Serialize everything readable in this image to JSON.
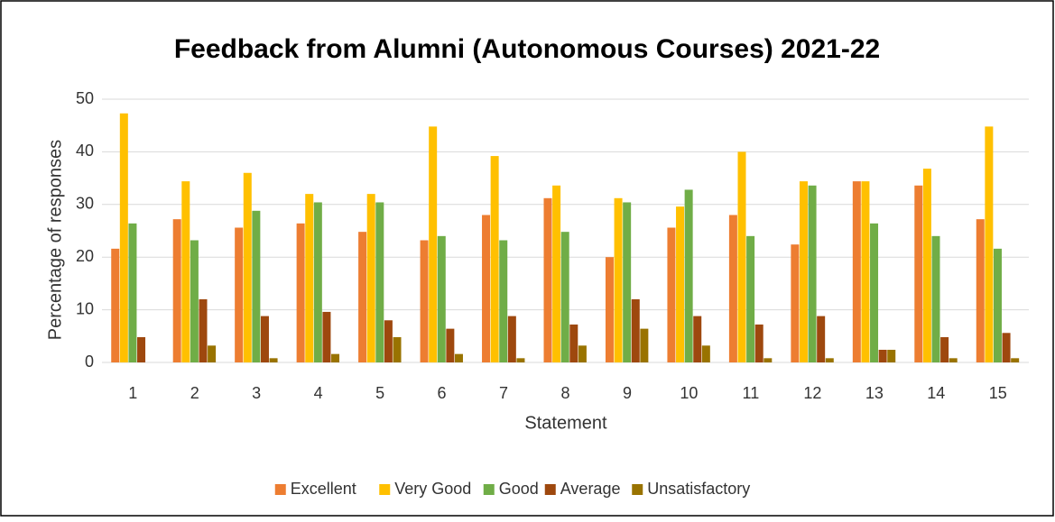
{
  "chart_data": {
    "type": "bar",
    "title": "Feedback from  Alumni (Autonomous Courses) 2021-22",
    "x_label": "Statement",
    "y_label": "Percentage of responses",
    "categories": [
      "1",
      "2",
      "3",
      "4",
      "5",
      "6",
      "7",
      "8",
      "9",
      "10",
      "11",
      "12",
      "13",
      "14",
      "15"
    ],
    "series": [
      {
        "name": "Excellent",
        "color": "#ed7d31",
        "values": [
          21.6,
          27.2,
          25.6,
          26.4,
          24.8,
          23.2,
          28,
          31.2,
          20,
          25.6,
          28,
          22.4,
          34.4,
          33.6,
          27.2
        ]
      },
      {
        "name": "Very Good",
        "color": "#ffc000",
        "values": [
          47.3,
          34.4,
          36,
          32,
          32,
          44.8,
          39.2,
          33.6,
          31.2,
          29.6,
          40,
          34.4,
          34.4,
          36.8,
          44.8
        ]
      },
      {
        "name": "Good",
        "color": "#70ad47",
        "values": [
          26.4,
          23.2,
          28.8,
          30.4,
          30.4,
          24,
          23.2,
          24.8,
          30.4,
          32.8,
          24,
          33.6,
          26.4,
          24,
          21.6
        ]
      },
      {
        "name": "Average",
        "color": "#9e480e",
        "values": [
          4.8,
          12,
          8.8,
          9.6,
          8,
          6.4,
          8.8,
          7.2,
          12,
          8.8,
          7.2,
          8.8,
          2.4,
          4.8,
          5.6
        ]
      },
      {
        "name": "Unsatisfactory",
        "color": "#997300",
        "values": [
          0,
          3.2,
          0.8,
          1.6,
          4.8,
          1.6,
          0.8,
          3.2,
          6.4,
          3.2,
          0.8,
          0.8,
          2.4,
          0.8,
          0.8
        ]
      }
    ],
    "ylim": [
      0,
      50
    ],
    "yticks": [
      0,
      10,
      20,
      30,
      40,
      50
    ],
    "grid": true,
    "legend": "bottom"
  }
}
